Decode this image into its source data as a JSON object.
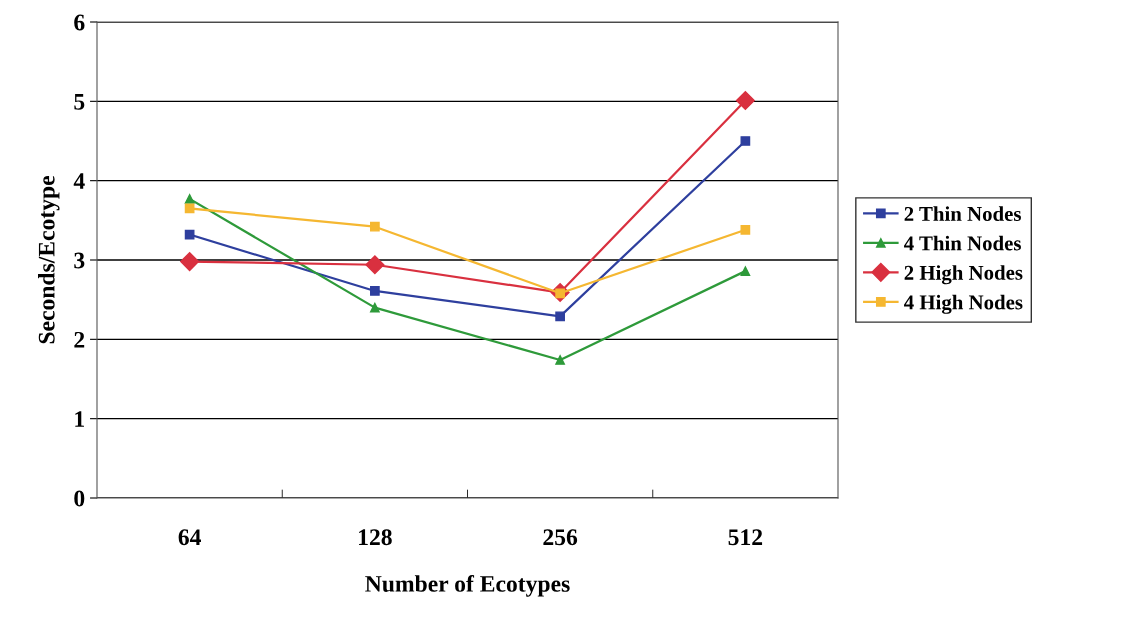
{
  "chart_data": {
    "type": "line",
    "xlabel": "Number of Ecotypes",
    "ylabel": "Seconds/Ecotype",
    "categories": [
      "64",
      "128",
      "256",
      "512"
    ],
    "series": [
      {
        "name": "2 Thin Nodes",
        "color": "#2e3f9e",
        "marker": "square",
        "values": [
          3.32,
          2.61,
          2.29,
          4.5
        ]
      },
      {
        "name": "4 Thin Nodes",
        "color": "#2e9a3a",
        "marker": "triangle",
        "values": [
          3.77,
          2.4,
          1.74,
          2.86
        ]
      },
      {
        "name": "2 High Nodes",
        "color": "#d9303f",
        "marker": "diamond",
        "values": [
          2.98,
          2.94,
          2.59,
          5.01
        ]
      },
      {
        "name": "4 High Nodes",
        "color": "#f5b731",
        "marker": "square",
        "values": [
          3.65,
          3.42,
          2.58,
          3.38
        ]
      }
    ],
    "ylim": [
      0,
      6
    ],
    "yticks": [
      0,
      1,
      2,
      3,
      4,
      5,
      6
    ],
    "grid": "y",
    "legend": "right",
    "line_style": "solid"
  }
}
